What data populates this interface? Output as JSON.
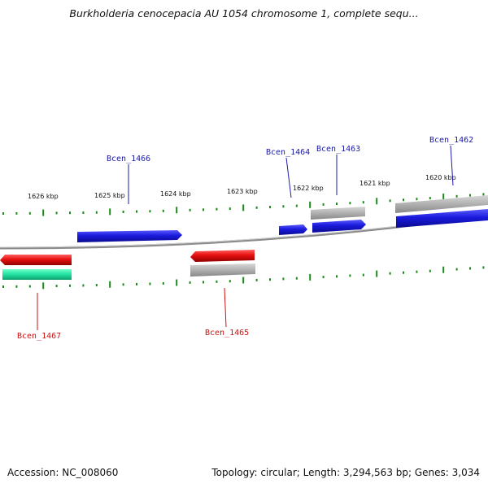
{
  "title": "Burkholderia cenocepacia AU 1054 chromosome 1, complete sequ...",
  "footer": {
    "accession": "Accession: NC_008060",
    "topology": "Topology: circular; Length: 3,294,563 bp; Genes: 3,034"
  },
  "scale_labels": [
    "1626 kbp",
    "1625 kbp",
    "1624 kbp",
    "1623 kbp",
    "1622 kbp",
    "1621 kbp",
    "1620 kbp"
  ],
  "gene_labels": {
    "top": [
      "Bcen_1466",
      "Bcen_1464",
      "Bcen_1463",
      "Bcen_1462"
    ],
    "bottom": [
      "Bcen_1467",
      "Bcen_1465"
    ]
  },
  "colors": {
    "forward_gene": "#1a1adc",
    "reverse_gene": "#e81010",
    "rna_gene": "#20e0a0",
    "pseudo_feature": "#b0b0b0",
    "backbone": "#909090",
    "tick": "#1a8a1a",
    "forward_label": "#1a1aaa",
    "reverse_label": "#cc1010"
  }
}
